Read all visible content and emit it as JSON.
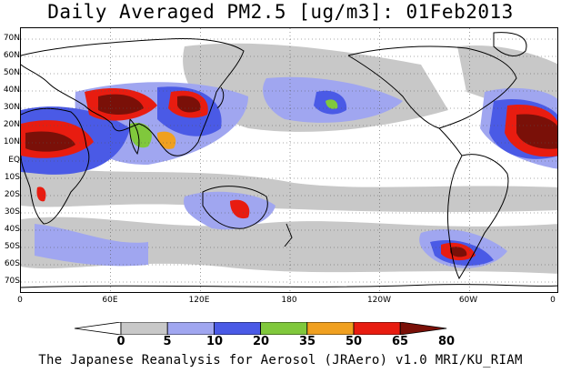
{
  "title": "Daily Averaged PM2.5 [ug/m3]: 01Feb2013",
  "footer": "The Japanese Reanalysis for Aerosol (JRAero) v1.0 MRI/KU_RIAM",
  "lat_labels": [
    "70N",
    "60N",
    "50N",
    "40N",
    "30N",
    "20N",
    "10N",
    "EQ",
    "10S",
    "20S",
    "30S",
    "40S",
    "50S",
    "60S",
    "70S"
  ],
  "lon_labels": [
    "0",
    "60E",
    "120E",
    "180",
    "120W",
    "60W",
    "0"
  ],
  "colorbar": {
    "levels": [
      "0",
      "5",
      "10",
      "20",
      "35",
      "50",
      "65",
      "80"
    ],
    "colors": [
      "#ffffff",
      "#c8c8c8",
      "#a0a6f0",
      "#4a5ae6",
      "#80c83c",
      "#f0a020",
      "#e81c10",
      "#7a1008"
    ]
  }
}
